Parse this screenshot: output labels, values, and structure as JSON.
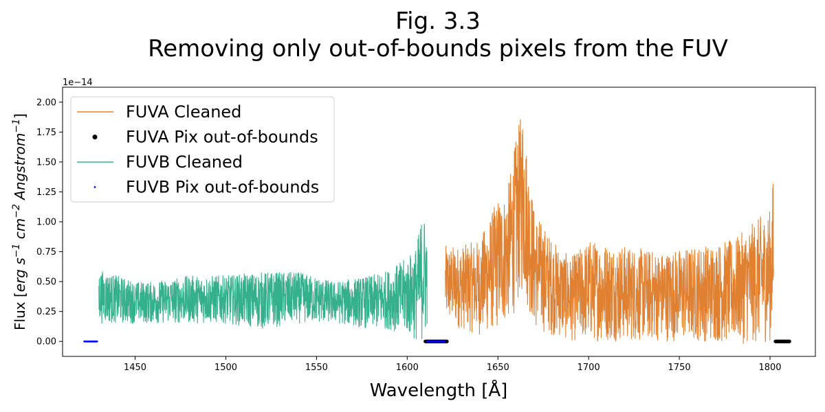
{
  "chart_data": {
    "type": "line",
    "title": "Fig. 3.3",
    "subtitle": "Removing only out-of-bounds pixels from the FUV",
    "xlabel": "Wavelength [Å]",
    "ylabel_parts": [
      "Flux [",
      "erg s",
      "−1",
      " cm",
      "−2",
      " Angstrom",
      "−1",
      "]"
    ],
    "y_offset_text": "1e−14",
    "xlim": [
      1410,
      1825
    ],
    "ylim": [
      -0.125,
      2.125
    ],
    "x_ticks": [
      1450,
      1500,
      1550,
      1600,
      1650,
      1700,
      1750,
      1800
    ],
    "x_tick_labels": [
      "1450",
      "1500",
      "1550",
      "1600",
      "1650",
      "1700",
      "1750",
      "1800"
    ],
    "y_ticks": [
      0.0,
      0.25,
      0.5,
      0.75,
      1.0,
      1.25,
      1.5,
      1.75,
      2.0
    ],
    "y_tick_labels": [
      "0.00",
      "0.25",
      "0.50",
      "0.75",
      "1.00",
      "1.25",
      "1.50",
      "1.75",
      "2.00"
    ],
    "legend_position": "upper-left",
    "series": [
      {
        "name": "FUVA Cleaned",
        "kind": "line",
        "color": "#e08031",
        "x_range": [
          1621,
          1802
        ],
        "envelope": {
          "x": [
            1621,
            1630,
            1640,
            1650,
            1655,
            1660,
            1662,
            1664,
            1666,
            1670,
            1680,
            1690,
            1700,
            1720,
            1740,
            1760,
            1780,
            1795,
            1800,
            1802
          ],
          "low": [
            0.15,
            0.1,
            0.05,
            0.1,
            0.15,
            0.25,
            0.35,
            0.4,
            0.3,
            0.1,
            0.05,
            0.0,
            0.0,
            0.0,
            0.0,
            0.0,
            -0.02,
            -0.02,
            0.0,
            0.0
          ],
          "high": [
            0.8,
            0.8,
            0.85,
            1.2,
            1.25,
            1.7,
            1.85,
            2.0,
            1.6,
            1.1,
            0.85,
            0.7,
            0.85,
            0.8,
            0.75,
            0.8,
            0.85,
            1.05,
            1.1,
            1.42
          ]
        }
      },
      {
        "name": "FUVA Pix out-of-bounds",
        "kind": "scatter",
        "color": "#000000",
        "x_ranges": [
          [
            1610,
            1622
          ],
          [
            1803,
            1811
          ]
        ],
        "y": 0.0
      },
      {
        "name": "FUVB Cleaned",
        "kind": "line",
        "color": "#34b08c",
        "x_range": [
          1430,
          1611
        ],
        "envelope": {
          "x": [
            1430,
            1440,
            1450,
            1460,
            1480,
            1500,
            1520,
            1540,
            1560,
            1580,
            1590,
            1600,
            1605,
            1608,
            1611
          ],
          "low": [
            0.15,
            0.15,
            0.15,
            0.15,
            0.15,
            0.15,
            0.1,
            0.15,
            0.15,
            0.1,
            0.1,
            0.05,
            0.0,
            0.0,
            0.0
          ],
          "high": [
            0.6,
            0.55,
            0.5,
            0.5,
            0.55,
            0.55,
            0.58,
            0.58,
            0.5,
            0.55,
            0.6,
            0.7,
            0.8,
            1.05,
            1.05
          ]
        }
      },
      {
        "name": "FUVB Pix out-of-bounds",
        "kind": "scatter",
        "color": "#0000ff",
        "x_ranges": [
          [
            1422,
            1429
          ],
          [
            1611,
            1621
          ]
        ],
        "y": 0.0
      }
    ]
  }
}
